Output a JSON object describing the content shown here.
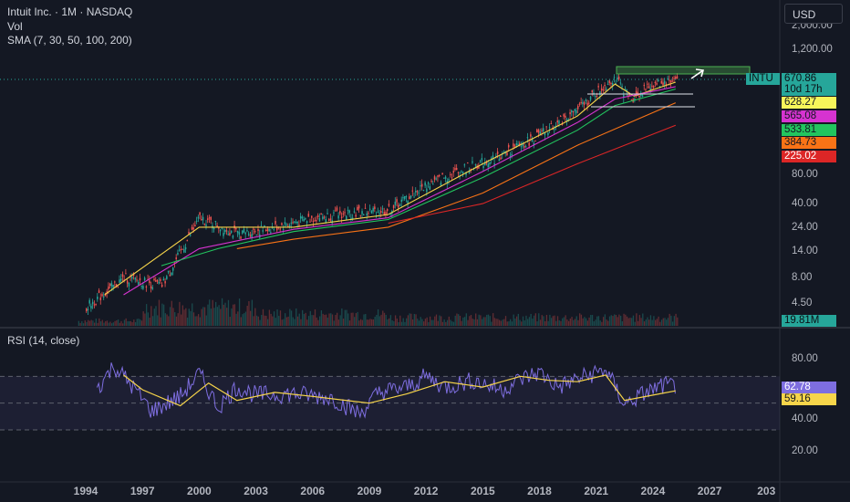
{
  "header": {
    "title": "Intuit Inc. · 1M · NASDAQ",
    "vol_label": "Vol",
    "sma_label": "SMA (7, 30, 50, 100, 200)",
    "currency": "USD"
  },
  "rsi_pane": {
    "label": "RSI (14, close)"
  },
  "colors": {
    "background": "#141823",
    "price": "#26a69a",
    "sma7": "#f7d54a",
    "sma30": "#d633d0",
    "sma50": "#22c55e",
    "sma100": "#f97316",
    "sma200": "#dc2626",
    "rsi": "#7e6ee0",
    "rsi_ma": "#f7d54a"
  },
  "price_scale_labels": [
    "2,000.00",
    "1,200.00",
    "80.00",
    "40.00",
    "24.00",
    "14.00",
    "8.00",
    "4.50"
  ],
  "price_tags": [
    {
      "text": "INTU",
      "bg": "#26a69a",
      "fg": "#0b0e14"
    },
    {
      "text": "670.86",
      "bg": "#26a69a",
      "fg": "#0b0e14"
    },
    {
      "text": "10d 17h",
      "bg": "#26a69a",
      "fg": "#0b0e14"
    },
    {
      "text": "628.27",
      "bg": "#f7f55a",
      "fg": "#131722"
    },
    {
      "text": "565.08",
      "bg": "#d633d0",
      "fg": "#131722"
    },
    {
      "text": "533.81",
      "bg": "#22c55e",
      "fg": "#131722"
    },
    {
      "text": "384.73",
      "bg": "#f97316",
      "fg": "#131722"
    },
    {
      "text": "225.02",
      "bg": "#dc2626",
      "fg": "#ffffff"
    },
    {
      "text": "19.81M",
      "bg": "#26a69a",
      "fg": "#0b0e14"
    }
  ],
  "rsi_scale_labels": [
    "80.00",
    "40.00",
    "20.00"
  ],
  "rsi_tags": [
    {
      "text": "62.78",
      "bg": "#7e6ee0",
      "fg": "#ffffff"
    },
    {
      "text": "59.16",
      "bg": "#f7d54a",
      "fg": "#131722"
    }
  ],
  "chart_data": [
    {
      "type": "line",
      "title": "Intuit Inc. · 1M · NASDAQ",
      "x_ticks": [
        "1994",
        "1997",
        "2000",
        "2003",
        "2006",
        "2009",
        "2012",
        "2015",
        "2018",
        "2021",
        "2024",
        "2027",
        "203"
      ],
      "y_scale": "log",
      "series": [
        {
          "name": "INTU",
          "x": [
            1994,
            1996,
            1998,
            2000,
            2002,
            2004,
            2006,
            2008,
            2010,
            2012,
            2014,
            2016,
            2018,
            2020,
            2021.9,
            2022.8,
            2024,
            2025.2
          ],
          "y": [
            3,
            6,
            5,
            25,
            17,
            20,
            25,
            28,
            30,
            55,
            80,
            110,
            180,
            330,
            700,
            420,
            600,
            670.86
          ]
        },
        {
          "name": "SMA 7",
          "x": [
            1995,
            2000,
            2005,
            2010,
            2015,
            2020,
            2022,
            2023,
            2025.2
          ],
          "y": [
            4,
            20,
            20,
            27,
            90,
            280,
            600,
            450,
            628.27
          ]
        },
        {
          "name": "SMA 30",
          "x": [
            1996,
            2000,
            2005,
            2010,
            2015,
            2020,
            2022,
            2025.2
          ],
          "y": [
            4,
            12,
            19,
            25,
            75,
            240,
            420,
            565.08
          ]
        },
        {
          "name": "SMA 50",
          "x": [
            1998,
            2001,
            2005,
            2010,
            2015,
            2020,
            2022,
            2025.2
          ],
          "y": [
            8,
            12,
            18,
            24,
            65,
            200,
            360,
            533.81
          ]
        },
        {
          "name": "SMA 100",
          "x": [
            2002,
            2005,
            2010,
            2015,
            2020,
            2025.2
          ],
          "y": [
            12,
            15,
            20,
            45,
            140,
            384.73
          ]
        },
        {
          "name": "SMA 200",
          "x": [
            2010,
            2015,
            2020,
            2025.2
          ],
          "y": [
            22,
            35,
            90,
            225.02
          ]
        }
      ]
    },
    {
      "type": "bar",
      "title": "Vol",
      "values_note_last": "19.81M"
    },
    {
      "type": "line",
      "title": "RSI (14, close)",
      "x_ticks": [
        "1994",
        "1997",
        "2000",
        "2003",
        "2006",
        "2009",
        "2012",
        "2015",
        "2018",
        "2021",
        "2024",
        "2027",
        "203"
      ],
      "y_ticks": [
        80,
        40,
        20
      ],
      "series": [
        {
          "name": "RSI",
          "x": [
            1994.6,
            1995.5,
            1996.5,
            1997.5,
            1999,
            2000,
            2001,
            2002,
            2003,
            2005,
            2007,
            2008.5,
            2009.5,
            2011,
            2012,
            2013,
            2014.5,
            2016,
            2017,
            2018,
            2019,
            2020,
            2021.5,
            2022.5,
            2023.5,
            2024.5,
            2025.2
          ],
          "y": [
            61,
            78,
            62,
            44,
            55,
            72,
            47,
            62,
            56,
            57,
            54,
            42,
            58,
            62,
            70,
            62,
            67,
            60,
            68,
            73,
            62,
            68,
            75,
            49,
            57,
            63,
            62.78
          ]
        },
        {
          "name": "RSI MA",
          "x": [
            1996,
            1997,
            1999,
            2000.5,
            2002,
            2004,
            2006,
            2009,
            2011,
            2013,
            2015,
            2017,
            2018.5,
            2020,
            2021.5,
            2022.5,
            2024,
            2025.2
          ],
          "y": [
            71,
            60,
            48,
            65,
            52,
            58,
            55,
            50,
            57,
            66,
            62,
            70,
            67,
            66,
            71,
            52,
            56,
            59.16
          ]
        }
      ]
    }
  ]
}
